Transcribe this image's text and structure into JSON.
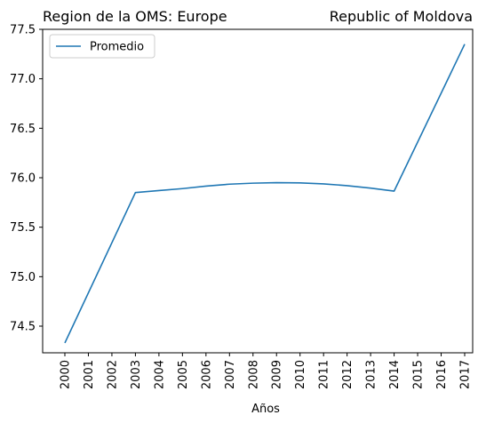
{
  "chart_data": {
    "type": "line",
    "title_left": "Region de la OMS: Europe",
    "title_right": "Republic of Moldova",
    "xlabel": "Años",
    "ylabel": "",
    "categories": [
      "2000",
      "2001",
      "2002",
      "2003",
      "2004",
      "2005",
      "2006",
      "2007",
      "2008",
      "2009",
      "2010",
      "2011",
      "2012",
      "2013",
      "2014",
      "2015",
      "2016",
      "2017"
    ],
    "series": [
      {
        "name": "Promedio",
        "color": "#1f77b4",
        "points": [
          {
            "x": "2000",
            "y": 74.33
          },
          {
            "x": "2003",
            "y": 75.85
          },
          {
            "x": "2004",
            "y": 75.87
          },
          {
            "x": "2005",
            "y": 75.89
          },
          {
            "x": "2006",
            "y": 75.915
          },
          {
            "x": "2007",
            "y": 75.935
          },
          {
            "x": "2008",
            "y": 75.945
          },
          {
            "x": "2009",
            "y": 75.95
          },
          {
            "x": "2010",
            "y": 75.948
          },
          {
            "x": "2011",
            "y": 75.938
          },
          {
            "x": "2012",
            "y": 75.92
          },
          {
            "x": "2013",
            "y": 75.895
          },
          {
            "x": "2014",
            "y": 75.865
          },
          {
            "x": "2017",
            "y": 77.35
          }
        ]
      }
    ],
    "yticks": [
      "74.5",
      "75.0",
      "75.5",
      "76.0",
      "76.5",
      "77.0",
      "77.5"
    ],
    "ylim": [
      74.2,
      77.5
    ],
    "grid": false,
    "legend_position": "top-left"
  }
}
